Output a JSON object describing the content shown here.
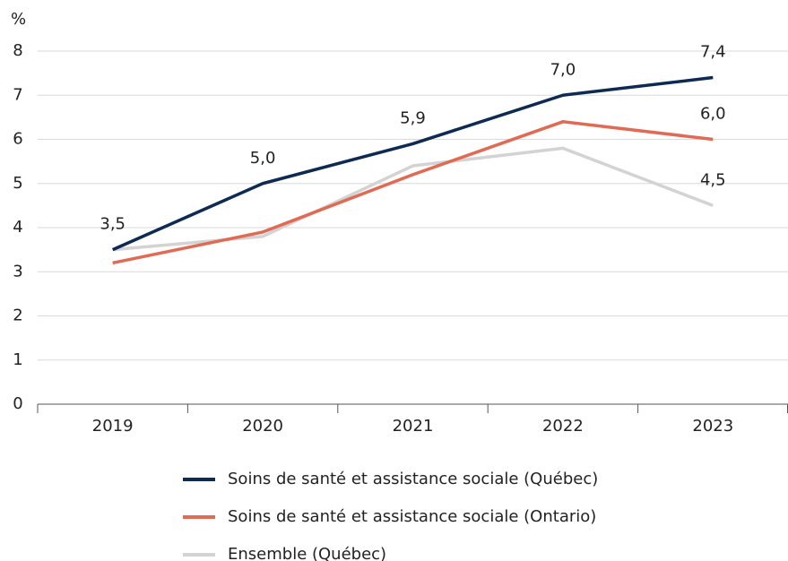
{
  "chart_data": {
    "type": "line",
    "ylabel": "%",
    "categories": [
      "2019",
      "2020",
      "2021",
      "2022",
      "2023"
    ],
    "series": [
      {
        "name": "Soins de santé et assistance sociale (Québec)",
        "color": "#0d2a52",
        "values": [
          3.5,
          5.0,
          5.9,
          7.0,
          7.4
        ],
        "value_labels": [
          "3,5",
          "5,0",
          "5,9",
          "7,0",
          "7,4"
        ]
      },
      {
        "name": "Soins de santé et assistance sociale (Ontario)",
        "color": "#e06a53",
        "values": [
          3.2,
          3.9,
          5.2,
          6.4,
          6.0
        ],
        "value_labels": [
          null,
          null,
          null,
          null,
          "6,0"
        ]
      },
      {
        "name": "Ensemble (Québec)",
        "color": "#d3d3d3",
        "values": [
          3.5,
          3.8,
          5.4,
          5.8,
          4.5
        ],
        "value_labels": [
          null,
          null,
          null,
          null,
          "4,5"
        ]
      }
    ],
    "ylim": [
      0,
      8
    ],
    "yticks": [
      0,
      1,
      2,
      3,
      4,
      5,
      6,
      7,
      8
    ],
    "grid": true
  }
}
